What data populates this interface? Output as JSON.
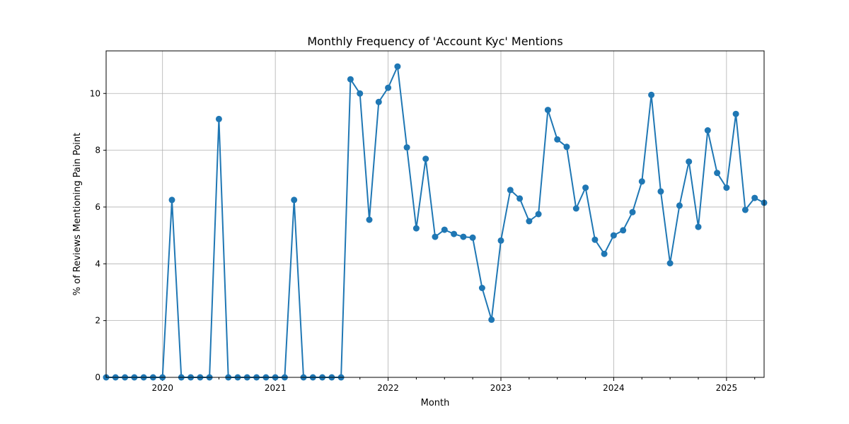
{
  "chart_data": {
    "type": "line",
    "title": "Monthly Frequency of 'Account Kyc' Mentions",
    "xlabel": "Month",
    "ylabel": "% of Reviews Mentioning Pain Point",
    "ylim": [
      0,
      11.5
    ],
    "xlim": [
      "2019-07",
      "2025-05"
    ],
    "grid": true,
    "y_ticks": [
      0,
      2,
      4,
      6,
      8,
      10
    ],
    "x_ticks": [
      "2020",
      "2021",
      "2022",
      "2023",
      "2024",
      "2025"
    ],
    "color": "#1f77b4",
    "series": [
      {
        "x": [
          "2019-07",
          "2019-08",
          "2019-09",
          "2019-10",
          "2019-11",
          "2019-12",
          "2020-01",
          "2020-02",
          "2020-03",
          "2020-04",
          "2020-05",
          "2020-06",
          "2020-07",
          "2020-08",
          "2020-09",
          "2020-10",
          "2020-11",
          "2020-12",
          "2021-01",
          "2021-02",
          "2021-03",
          "2021-04",
          "2021-05",
          "2021-06",
          "2021-07",
          "2021-08",
          "2021-09",
          "2021-10",
          "2021-11",
          "2021-12",
          "2022-01",
          "2022-02",
          "2022-03",
          "2022-04",
          "2022-05",
          "2022-06",
          "2022-07",
          "2022-08",
          "2022-09",
          "2022-10",
          "2022-11",
          "2022-12",
          "2023-01",
          "2023-02",
          "2023-03",
          "2023-04",
          "2023-05",
          "2023-06",
          "2023-07",
          "2023-08",
          "2023-09",
          "2023-10",
          "2023-11",
          "2023-12",
          "2024-01",
          "2024-02",
          "2024-03",
          "2024-04",
          "2024-05",
          "2024-06",
          "2024-07",
          "2024-08",
          "2024-09",
          "2024-10",
          "2024-11",
          "2024-12",
          "2025-01",
          "2025-02",
          "2025-03",
          "2025-04",
          "2025-05"
        ],
        "values": [
          0,
          0,
          0,
          0,
          0,
          0,
          0,
          6.25,
          0,
          0,
          0,
          0,
          9.1,
          0,
          0,
          0,
          0,
          0,
          0,
          0,
          6.25,
          0,
          0,
          0,
          0,
          0,
          10.5,
          10.0,
          5.55,
          9.7,
          10.2,
          10.95,
          8.1,
          5.25,
          7.7,
          4.95,
          5.2,
          5.05,
          4.95,
          4.92,
          3.15,
          2.03,
          4.82,
          6.6,
          6.3,
          5.5,
          5.75,
          9.42,
          8.38,
          8.12,
          5.95,
          6.68,
          4.85,
          4.35,
          5.0,
          5.18,
          5.82,
          6.9,
          9.95,
          6.55,
          4.02,
          6.05,
          7.6,
          5.3,
          8.7,
          7.2,
          6.68,
          9.28,
          5.9,
          6.32,
          6.15
        ]
      }
    ]
  }
}
